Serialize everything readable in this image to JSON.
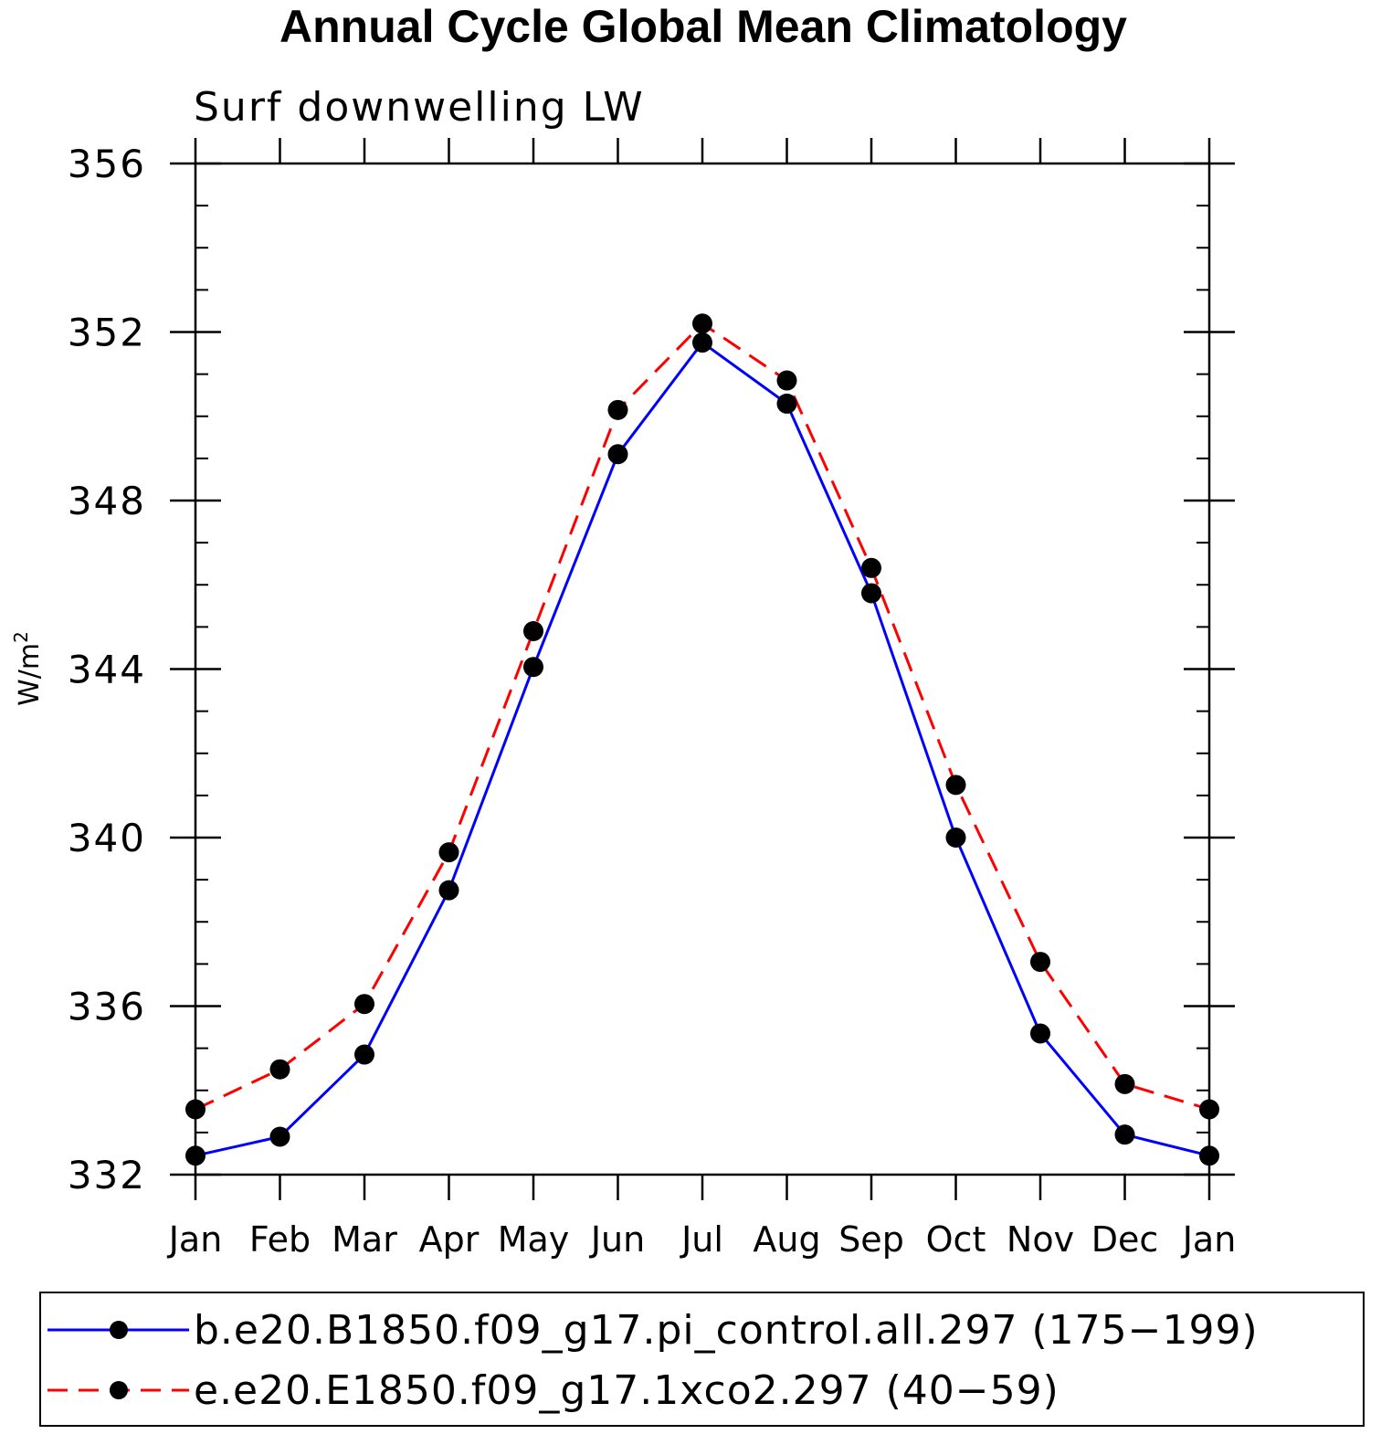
{
  "chart_data": {
    "type": "line",
    "title": "Annual Cycle Global Mean Climatology",
    "subtitle": "Surf downwelling LW",
    "ylabel": "W/m",
    "ylabel_superscript": "2",
    "xlabel": "",
    "categories": [
      "Jan",
      "Feb",
      "Mar",
      "Apr",
      "May",
      "Jun",
      "Jul",
      "Aug",
      "Sep",
      "Oct",
      "Nov",
      "Dec",
      "Jan"
    ],
    "ylim": [
      332,
      356
    ],
    "yticks": [
      332,
      336,
      340,
      344,
      348,
      352,
      356
    ],
    "yminor_step": 1,
    "series": [
      {
        "name": "b.e20.B1850.f09_g17.pi_control.all.297 (175−199)",
        "color": "#0000ff",
        "style": "solid",
        "marker": "filled-circle",
        "values": [
          332.45,
          332.9,
          334.85,
          338.75,
          344.05,
          349.1,
          351.75,
          350.3,
          345.8,
          340.0,
          335.35,
          332.95,
          332.45
        ]
      },
      {
        "name": "e.e20.E1850.f09_g17.1xco2.297 (40−59)",
        "color": "#ff0000",
        "style": "dashed",
        "marker": "filled-circle",
        "values": [
          333.55,
          334.5,
          336.05,
          339.65,
          344.9,
          350.15,
          352.2,
          350.85,
          346.4,
          341.25,
          337.05,
          334.15,
          333.55
        ]
      }
    ],
    "grid": false,
    "legend_position": "bottom"
  }
}
